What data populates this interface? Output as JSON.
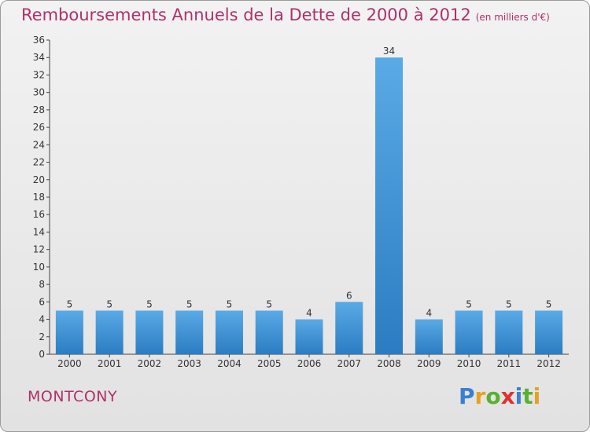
{
  "title": "Remboursements Annuels de la Dette de 2000 à 2012",
  "unit": "(en milliers d'€)",
  "town": "MONTCONY",
  "logo": {
    "letters": [
      "P",
      "r",
      "o",
      "x",
      "i",
      "t",
      "i"
    ],
    "colors": [
      "#3a7fd0",
      "#e8a020",
      "#58b030",
      "#e03030",
      "#3a7fd0",
      "#58b030",
      "#e8a020"
    ]
  },
  "colors": {
    "bar_top": "#5aaae6",
    "bar_bottom": "#2b7cc2",
    "title": "#b0306a"
  },
  "chart_data": {
    "type": "bar",
    "categories": [
      "2000",
      "2001",
      "2002",
      "2003",
      "2004",
      "2005",
      "2006",
      "2007",
      "2008",
      "2009",
      "2010",
      "2011",
      "2012"
    ],
    "values": [
      5,
      5,
      5,
      5,
      5,
      5,
      4,
      6,
      34,
      4,
      5,
      5,
      5
    ],
    "ylim": [
      0,
      36
    ],
    "yticks": [
      0,
      2,
      4,
      6,
      8,
      10,
      12,
      14,
      16,
      18,
      20,
      22,
      24,
      26,
      28,
      30,
      32,
      34,
      36
    ],
    "grid": false
  }
}
